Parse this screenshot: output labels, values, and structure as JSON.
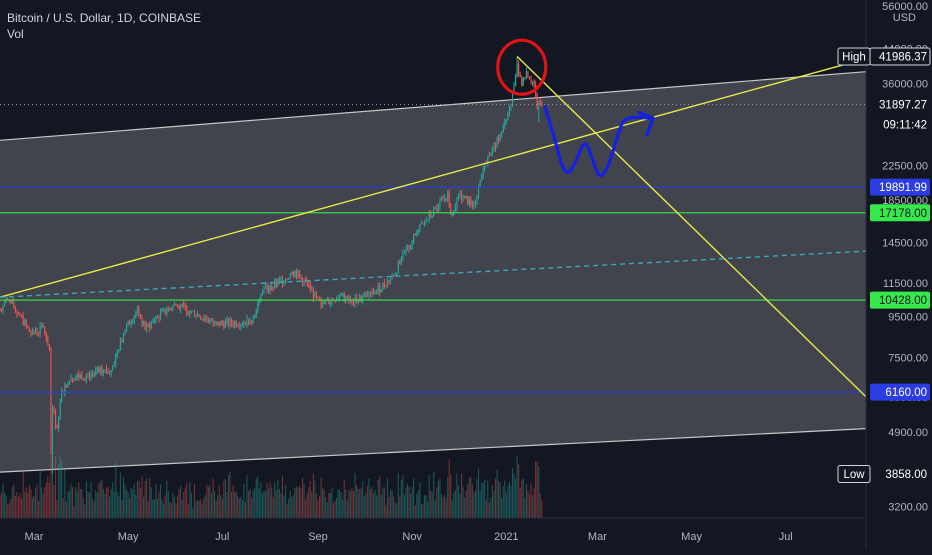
{
  "legend": {
    "title": "Bitcoin / U.S. Dollar, 1D, COINBASE",
    "volume_label": "Vol"
  },
  "currency": "USD",
  "colors": {
    "background": "#131722",
    "up": "#26a69a",
    "down": "#ef5350",
    "channel_fill": "#4a4c53",
    "channel_line": "#c8c8c8",
    "trend_yellow": "#e8e84a",
    "level_blue": "#2b3ce0",
    "level_green": "#37e84a",
    "projection_blue": "#1420e8",
    "circle_red": "#e01414",
    "dashed_teal": "#3ea6b8",
    "axis_text": "#b2b5be",
    "price_tag": "#ffffff"
  },
  "chart_data": {
    "type": "candlestick",
    "title": "Bitcoin / U.S. Dollar, 1D, COINBASE",
    "y_scale": "log",
    "ylim": [
      3000,
      58000
    ],
    "xlim": [
      "2020-02-08",
      "2021-08-22"
    ],
    "y_ticks": [
      {
        "value": 56000,
        "label": "56000.00"
      },
      {
        "value": 44000,
        "label": "44000.00"
      },
      {
        "value": 36000,
        "label": "36000.00"
      },
      {
        "value": 22500,
        "label": "22500.00"
      },
      {
        "value": 18500,
        "label": "18500.00"
      },
      {
        "value": 14500,
        "label": "14500.00"
      },
      {
        "value": 11500,
        "label": "11500.00"
      },
      {
        "value": 9500,
        "label": "9500.00"
      },
      {
        "value": 7500,
        "label": "7500.00"
      },
      {
        "value": 6000,
        "label": "6000.00"
      },
      {
        "value": 4900,
        "label": "4900.00"
      },
      {
        "value": 3200,
        "label": "3200.00"
      }
    ],
    "x_ticks": [
      {
        "date": "2020-03-01",
        "label": "Mar"
      },
      {
        "date": "2020-05-01",
        "label": "May"
      },
      {
        "date": "2020-07-01",
        "label": "Jul"
      },
      {
        "date": "2020-09-01",
        "label": "Sep"
      },
      {
        "date": "2020-11-01",
        "label": "Nov"
      },
      {
        "date": "2021-01-01",
        "label": "2021"
      },
      {
        "date": "2021-03-01",
        "label": "Mar"
      },
      {
        "date": "2021-05-01",
        "label": "May"
      },
      {
        "date": "2021-07-01",
        "label": "Jul"
      }
    ],
    "price_markers": [
      {
        "name": "high",
        "label": "High",
        "value": 41986.37,
        "text": "41986.37",
        "bg": "#131722",
        "fg": "#ffffff",
        "border": "#d1d4dc"
      },
      {
        "name": "last",
        "value": 31897.27,
        "text": "31897.27",
        "bg": "#131722",
        "fg": "#ffffff"
      },
      {
        "name": "countdown",
        "value": 28500,
        "text": "09:11:42",
        "bg": "#131722",
        "fg": "#ffffff"
      },
      {
        "name": "level-blue-upper",
        "value": 19891.99,
        "text": "19891.99",
        "bg": "#2b3ce0",
        "fg": "#ffffff"
      },
      {
        "name": "level-green-upper",
        "value": 17178,
        "text": "17178.00",
        "bg": "#37e84a",
        "fg": "#131722"
      },
      {
        "name": "level-green-lower",
        "value": 10428,
        "text": "10428.00",
        "bg": "#37e84a",
        "fg": "#131722"
      },
      {
        "name": "level-blue-lower",
        "value": 6160,
        "text": "6160.00",
        "bg": "#2b3ce0",
        "fg": "#ffffff"
      },
      {
        "name": "low",
        "label": "Low",
        "value": 3858,
        "text": "3858.00",
        "bg": "#131722",
        "fg": "#ffffff"
      }
    ],
    "horizontal_levels": [
      {
        "name": "level-blue-upper",
        "value": 19891.99,
        "color": "#2b3ce0"
      },
      {
        "name": "level-green-upper",
        "value": 17178,
        "color": "#37e84a"
      },
      {
        "name": "level-green-lower",
        "value": 10428,
        "color": "#37e84a"
      },
      {
        "name": "level-blue-lower",
        "value": 6160,
        "color": "#2b3ce0"
      }
    ],
    "last_price_line": 31897.27,
    "channel": {
      "upper": [
        [
          "2020-02-08",
          26000
        ],
        [
          "2021-08-22",
          38500
        ]
      ],
      "lower": [
        [
          "2020-02-08",
          3900
        ],
        [
          "2021-08-22",
          5000
        ]
      ]
    },
    "trendlines": [
      {
        "name": "rising-trendline",
        "color": "#e8e84a",
        "points": [
          [
            "2020-02-08",
            10600
          ],
          [
            "2021-08-12",
            40500
          ]
        ]
      },
      {
        "name": "falling-trendline",
        "color": "#e8e84a",
        "points": [
          [
            "2021-01-08",
            41986
          ],
          [
            "2021-08-22",
            6000
          ]
        ]
      },
      {
        "name": "dashed-midline",
        "color": "#3ea6b8",
        "dashed": true,
        "points": [
          [
            "2020-02-08",
            10600
          ],
          [
            "2021-08-22",
            13800
          ]
        ]
      }
    ],
    "projection_path": [
      [
        "2021-01-26",
        31500
      ],
      [
        "2021-02-01",
        26500
      ],
      [
        "2021-02-08",
        21000
      ],
      [
        "2021-02-15",
        22800
      ],
      [
        "2021-02-21",
        26500
      ],
      [
        "2021-02-27",
        22500
      ],
      [
        "2021-03-03",
        20800
      ],
      [
        "2021-03-09",
        22800
      ],
      [
        "2021-03-15",
        27500
      ],
      [
        "2021-03-19",
        29800
      ],
      [
        "2021-04-06",
        29500
      ]
    ],
    "projection_arrowhead": [
      [
        "2021-03-28",
        30500
      ],
      [
        "2021-04-06",
        29500
      ],
      [
        "2021-04-02",
        26800
      ]
    ],
    "highlight_circle": {
      "date": "2021-01-11",
      "price": 39500
    },
    "ohlc_daily": {
      "start_date": "2020-02-08",
      "key_closes": [
        [
          "2020-02-08",
          9900
        ],
        [
          "2020-02-13",
          10450
        ],
        [
          "2020-02-20",
          9650
        ],
        [
          "2020-02-28",
          8600
        ],
        [
          "2020-03-07",
          8900
        ],
        [
          "2020-03-11",
          7900
        ],
        [
          "2020-03-12",
          4900
        ],
        [
          "2020-03-13",
          5600
        ],
        [
          "2020-03-16",
          5000
        ],
        [
          "2020-03-19",
          6200
        ],
        [
          "2020-03-25",
          6700
        ],
        [
          "2020-04-05",
          6800
        ],
        [
          "2020-04-12",
          6900
        ],
        [
          "2020-04-20",
          7000
        ],
        [
          "2020-04-29",
          8800
        ],
        [
          "2020-05-07",
          9900
        ],
        [
          "2020-05-12",
          8800
        ],
        [
          "2020-05-20",
          9500
        ],
        [
          "2020-06-01",
          10200
        ],
        [
          "2020-06-10",
          9800
        ],
        [
          "2020-06-27",
          9100
        ],
        [
          "2020-07-15",
          9200
        ],
        [
          "2020-07-21",
          9400
        ],
        [
          "2020-07-27",
          11000
        ],
        [
          "2020-08-02",
          11200
        ],
        [
          "2020-08-17",
          12300
        ],
        [
          "2020-08-25",
          11400
        ],
        [
          "2020-09-03",
          10100
        ],
        [
          "2020-09-05",
          10200
        ],
        [
          "2020-09-15",
          10700
        ],
        [
          "2020-09-23",
          10300
        ],
        [
          "2020-10-08",
          10900
        ],
        [
          "2020-10-20",
          12000
        ],
        [
          "2020-10-25",
          13100
        ],
        [
          "2020-11-05",
          15600
        ],
        [
          "2020-11-18",
          17800
        ],
        [
          "2020-11-24",
          19200
        ],
        [
          "2020-11-26",
          17000
        ],
        [
          "2020-12-01",
          19000
        ],
        [
          "2020-12-11",
          18000
        ],
        [
          "2020-12-16",
          21300
        ],
        [
          "2020-12-20",
          23800
        ],
        [
          "2020-12-27",
          26000
        ],
        [
          "2021-01-01",
          29300
        ],
        [
          "2021-01-04",
          31900
        ],
        [
          "2021-01-08",
          40200
        ],
        [
          "2021-01-11",
          35500
        ],
        [
          "2021-01-14",
          38500
        ],
        [
          "2021-01-19",
          35800
        ],
        [
          "2021-01-21",
          31500
        ],
        [
          "2021-01-22",
          32400
        ],
        [
          "2021-01-24",
          31897.27
        ]
      ],
      "wicks": [
        [
          "2020-03-12",
          4300
        ],
        [
          "2020-03-13",
          3858
        ],
        [
          "2021-01-08",
          41986.37
        ],
        [
          "2021-01-22",
          28800
        ]
      ]
    },
    "volume_notes": "Volume histogram in the bottom pane (relative heights only, axis unlabeled)."
  }
}
